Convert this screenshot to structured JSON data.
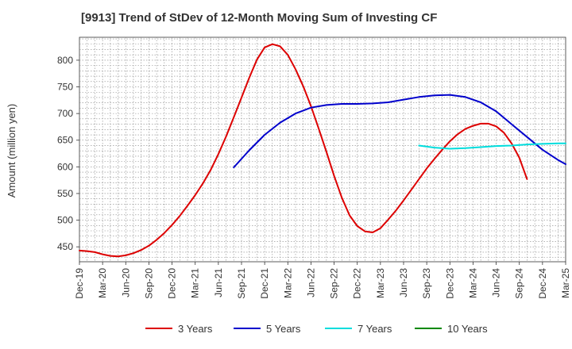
{
  "title": "[9913]  Trend of StDev of 12-Month Moving Sum of Investing CF",
  "chart_data": {
    "type": "line",
    "title": "[9913]  Trend of StDev of 12-Month Moving Sum of Investing CF",
    "ylabel": "Amount (million yen)",
    "xlabel": "",
    "x_categories": [
      "Dec-19",
      "Mar-20",
      "Jun-20",
      "Sep-20",
      "Dec-20",
      "Mar-21",
      "Jun-21",
      "Sep-21",
      "Dec-21",
      "Mar-22",
      "Jun-22",
      "Sep-22",
      "Dec-22",
      "Mar-23",
      "Jun-23",
      "Sep-23",
      "Dec-23",
      "Mar-24",
      "Jun-24",
      "Sep-24",
      "Dec-24",
      "Mar-25"
    ],
    "x_range": [
      0,
      63
    ],
    "yticks": [
      450,
      500,
      550,
      600,
      650,
      700,
      750,
      800
    ],
    "ylim": [
      422,
      843
    ],
    "grid": true,
    "legend_position": "bottom",
    "series": [
      {
        "name": "3 Years",
        "color": "#dd0000",
        "points": [
          [
            0,
            443
          ],
          [
            1,
            442
          ],
          [
            2,
            440
          ],
          [
            3,
            436
          ],
          [
            4,
            433
          ],
          [
            5,
            432
          ],
          [
            6,
            434
          ],
          [
            7,
            438
          ],
          [
            8,
            444
          ],
          [
            9,
            452
          ],
          [
            10,
            463
          ],
          [
            11,
            476
          ],
          [
            12,
            491
          ],
          [
            13,
            508
          ],
          [
            14,
            527
          ],
          [
            15,
            547
          ],
          [
            16,
            569
          ],
          [
            17,
            594
          ],
          [
            18,
            624
          ],
          [
            19,
            657
          ],
          [
            20,
            693
          ],
          [
            21,
            730
          ],
          [
            22,
            767
          ],
          [
            23,
            801
          ],
          [
            24,
            824
          ],
          [
            25,
            830
          ],
          [
            26,
            826
          ],
          [
            27,
            810
          ],
          [
            28,
            783
          ],
          [
            29,
            751
          ],
          [
            30,
            714
          ],
          [
            31,
            672
          ],
          [
            32,
            628
          ],
          [
            33,
            583
          ],
          [
            34,
            542
          ],
          [
            35,
            509
          ],
          [
            36,
            489
          ],
          [
            37,
            479
          ],
          [
            38,
            477
          ],
          [
            39,
            485
          ],
          [
            40,
            501
          ],
          [
            41,
            518
          ],
          [
            42,
            537
          ],
          [
            43,
            557
          ],
          [
            44,
            577
          ],
          [
            45,
            597
          ],
          [
            46,
            615
          ],
          [
            47,
            632
          ],
          [
            48,
            648
          ],
          [
            49,
            661
          ],
          [
            50,
            671
          ],
          [
            51,
            677
          ],
          [
            52,
            681
          ],
          [
            53,
            681
          ],
          [
            54,
            676
          ],
          [
            55,
            664
          ],
          [
            56,
            644
          ],
          [
            57,
            617
          ],
          [
            58,
            577
          ]
        ]
      },
      {
        "name": "5 Years",
        "color": "#0000cc",
        "points": [
          [
            20,
            599
          ],
          [
            22,
            631
          ],
          [
            24,
            660
          ],
          [
            26,
            683
          ],
          [
            28,
            700
          ],
          [
            30,
            711
          ],
          [
            32,
            716
          ],
          [
            34,
            718
          ],
          [
            36,
            718
          ],
          [
            38,
            719
          ],
          [
            40,
            721
          ],
          [
            42,
            726
          ],
          [
            44,
            731
          ],
          [
            46,
            734
          ],
          [
            48,
            735
          ],
          [
            50,
            731
          ],
          [
            52,
            721
          ],
          [
            54,
            704
          ],
          [
            56,
            680
          ],
          [
            58,
            656
          ],
          [
            60,
            632
          ],
          [
            62,
            613
          ],
          [
            63,
            605
          ]
        ]
      },
      {
        "name": "7 Years",
        "color": "#00dddd",
        "points": [
          [
            44,
            640
          ],
          [
            46,
            636
          ],
          [
            48,
            634
          ],
          [
            50,
            635
          ],
          [
            52,
            637
          ],
          [
            54,
            639
          ],
          [
            56,
            640
          ],
          [
            58,
            642
          ],
          [
            60,
            643
          ],
          [
            62,
            644
          ],
          [
            63,
            644
          ]
        ]
      },
      {
        "name": "10 Years",
        "color": "#008800",
        "points": []
      }
    ]
  }
}
